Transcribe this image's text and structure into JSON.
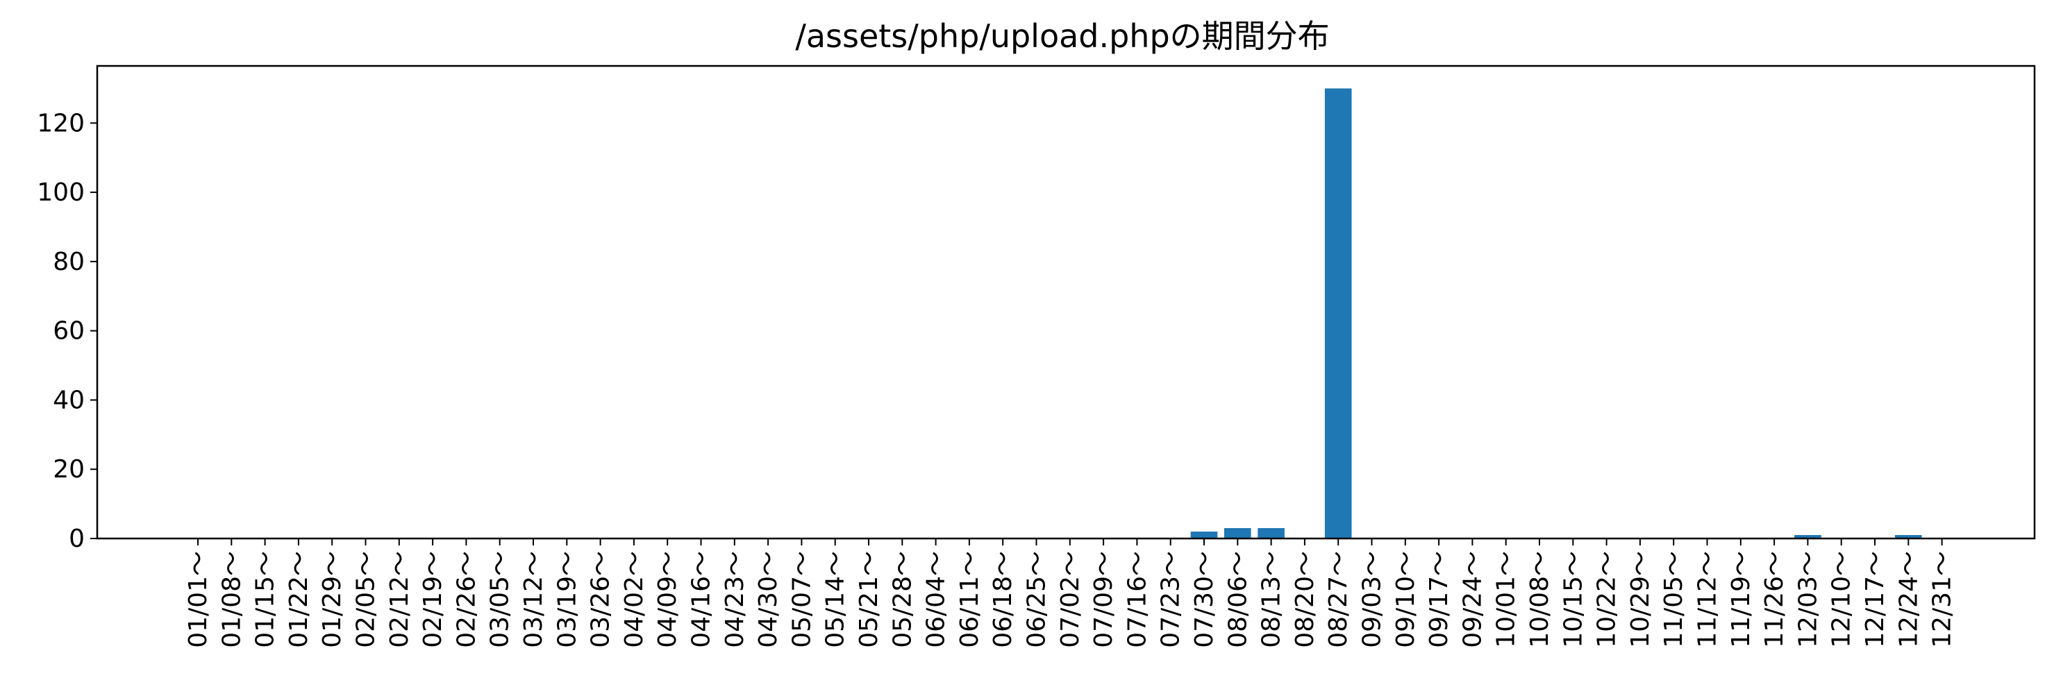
{
  "chart_data": {
    "type": "bar",
    "title": "/assets/php/upload.phpの期間分布",
    "xlabel": "",
    "ylabel": "",
    "ylim": [
      0,
      136.5
    ],
    "yticks": [
      0,
      20,
      40,
      60,
      80,
      100,
      120
    ],
    "bar_color": "#1f77b4",
    "grid": false,
    "categories": [
      "01/01～",
      "01/08～",
      "01/15～",
      "01/22～",
      "01/29～",
      "02/05～",
      "02/12～",
      "02/19～",
      "02/26～",
      "03/05～",
      "03/12～",
      "03/19～",
      "03/26～",
      "04/02～",
      "04/09～",
      "04/16～",
      "04/23～",
      "04/30～",
      "05/07～",
      "05/14～",
      "05/21～",
      "05/28～",
      "06/04～",
      "06/11～",
      "06/18～",
      "06/25～",
      "07/02～",
      "07/09～",
      "07/16～",
      "07/23～",
      "07/30～",
      "08/06～",
      "08/13～",
      "08/20～",
      "08/27～",
      "09/03～",
      "09/10～",
      "09/17～",
      "09/24～",
      "10/01～",
      "10/08～",
      "10/15～",
      "10/22～",
      "10/29～",
      "11/05～",
      "11/12～",
      "11/19～",
      "11/26～",
      "12/03～",
      "12/10～",
      "12/17～",
      "12/24～",
      "12/31～"
    ],
    "values": [
      0,
      0,
      0,
      0,
      0,
      0,
      0,
      0,
      0,
      0,
      0,
      0,
      0,
      0,
      0,
      0,
      0,
      0,
      0,
      0,
      0,
      0,
      0,
      0,
      0,
      0,
      0,
      0,
      0,
      0,
      2,
      3,
      3,
      0,
      130,
      0,
      0,
      0,
      0,
      0,
      0,
      0,
      0,
      0,
      0,
      0,
      0,
      0,
      1,
      0,
      0,
      1,
      0
    ]
  }
}
